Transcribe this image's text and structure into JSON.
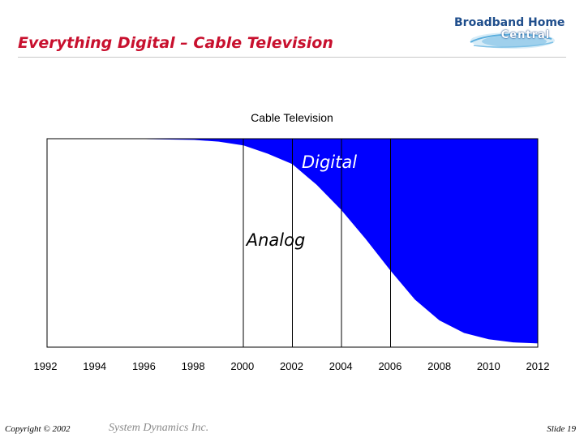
{
  "slide": {
    "title": "Everything Digital – Cable Television",
    "logo": {
      "line1": "Broadband Home",
      "line2": "Central"
    }
  },
  "footer": {
    "copyright": "Copyright © 2002",
    "company": "System Dynamics Inc.",
    "slide_number": "Slide 19"
  },
  "chart_data": {
    "type": "area",
    "title": "Cable Television",
    "x_ticks": [
      "1992",
      "1994",
      "1996",
      "1998",
      "2000",
      "2002",
      "2004",
      "2006",
      "2008",
      "2010",
      "2012"
    ],
    "xlim": [
      1992,
      2012
    ],
    "ylim": [
      0,
      1
    ],
    "grid": false,
    "colors": {
      "digital": "#0000ff",
      "analog": "#ffffff",
      "frame": "#000000"
    },
    "annotations": [
      "Digital",
      "Analog"
    ],
    "series": [
      {
        "name": "Digital",
        "x": [
          1992,
          1996,
          1998,
          1999,
          2000,
          2001,
          2002,
          2003,
          2004,
          2005,
          2006,
          2007,
          2008,
          2009,
          2010,
          2011,
          2012
        ],
        "values": [
          0.0,
          0.0,
          0.004,
          0.012,
          0.03,
          0.07,
          0.12,
          0.22,
          0.34,
          0.48,
          0.63,
          0.77,
          0.87,
          0.93,
          0.96,
          0.975,
          0.98
        ]
      }
    ],
    "vertical_markers_x": [
      2000,
      2002,
      2004,
      2006
    ]
  }
}
